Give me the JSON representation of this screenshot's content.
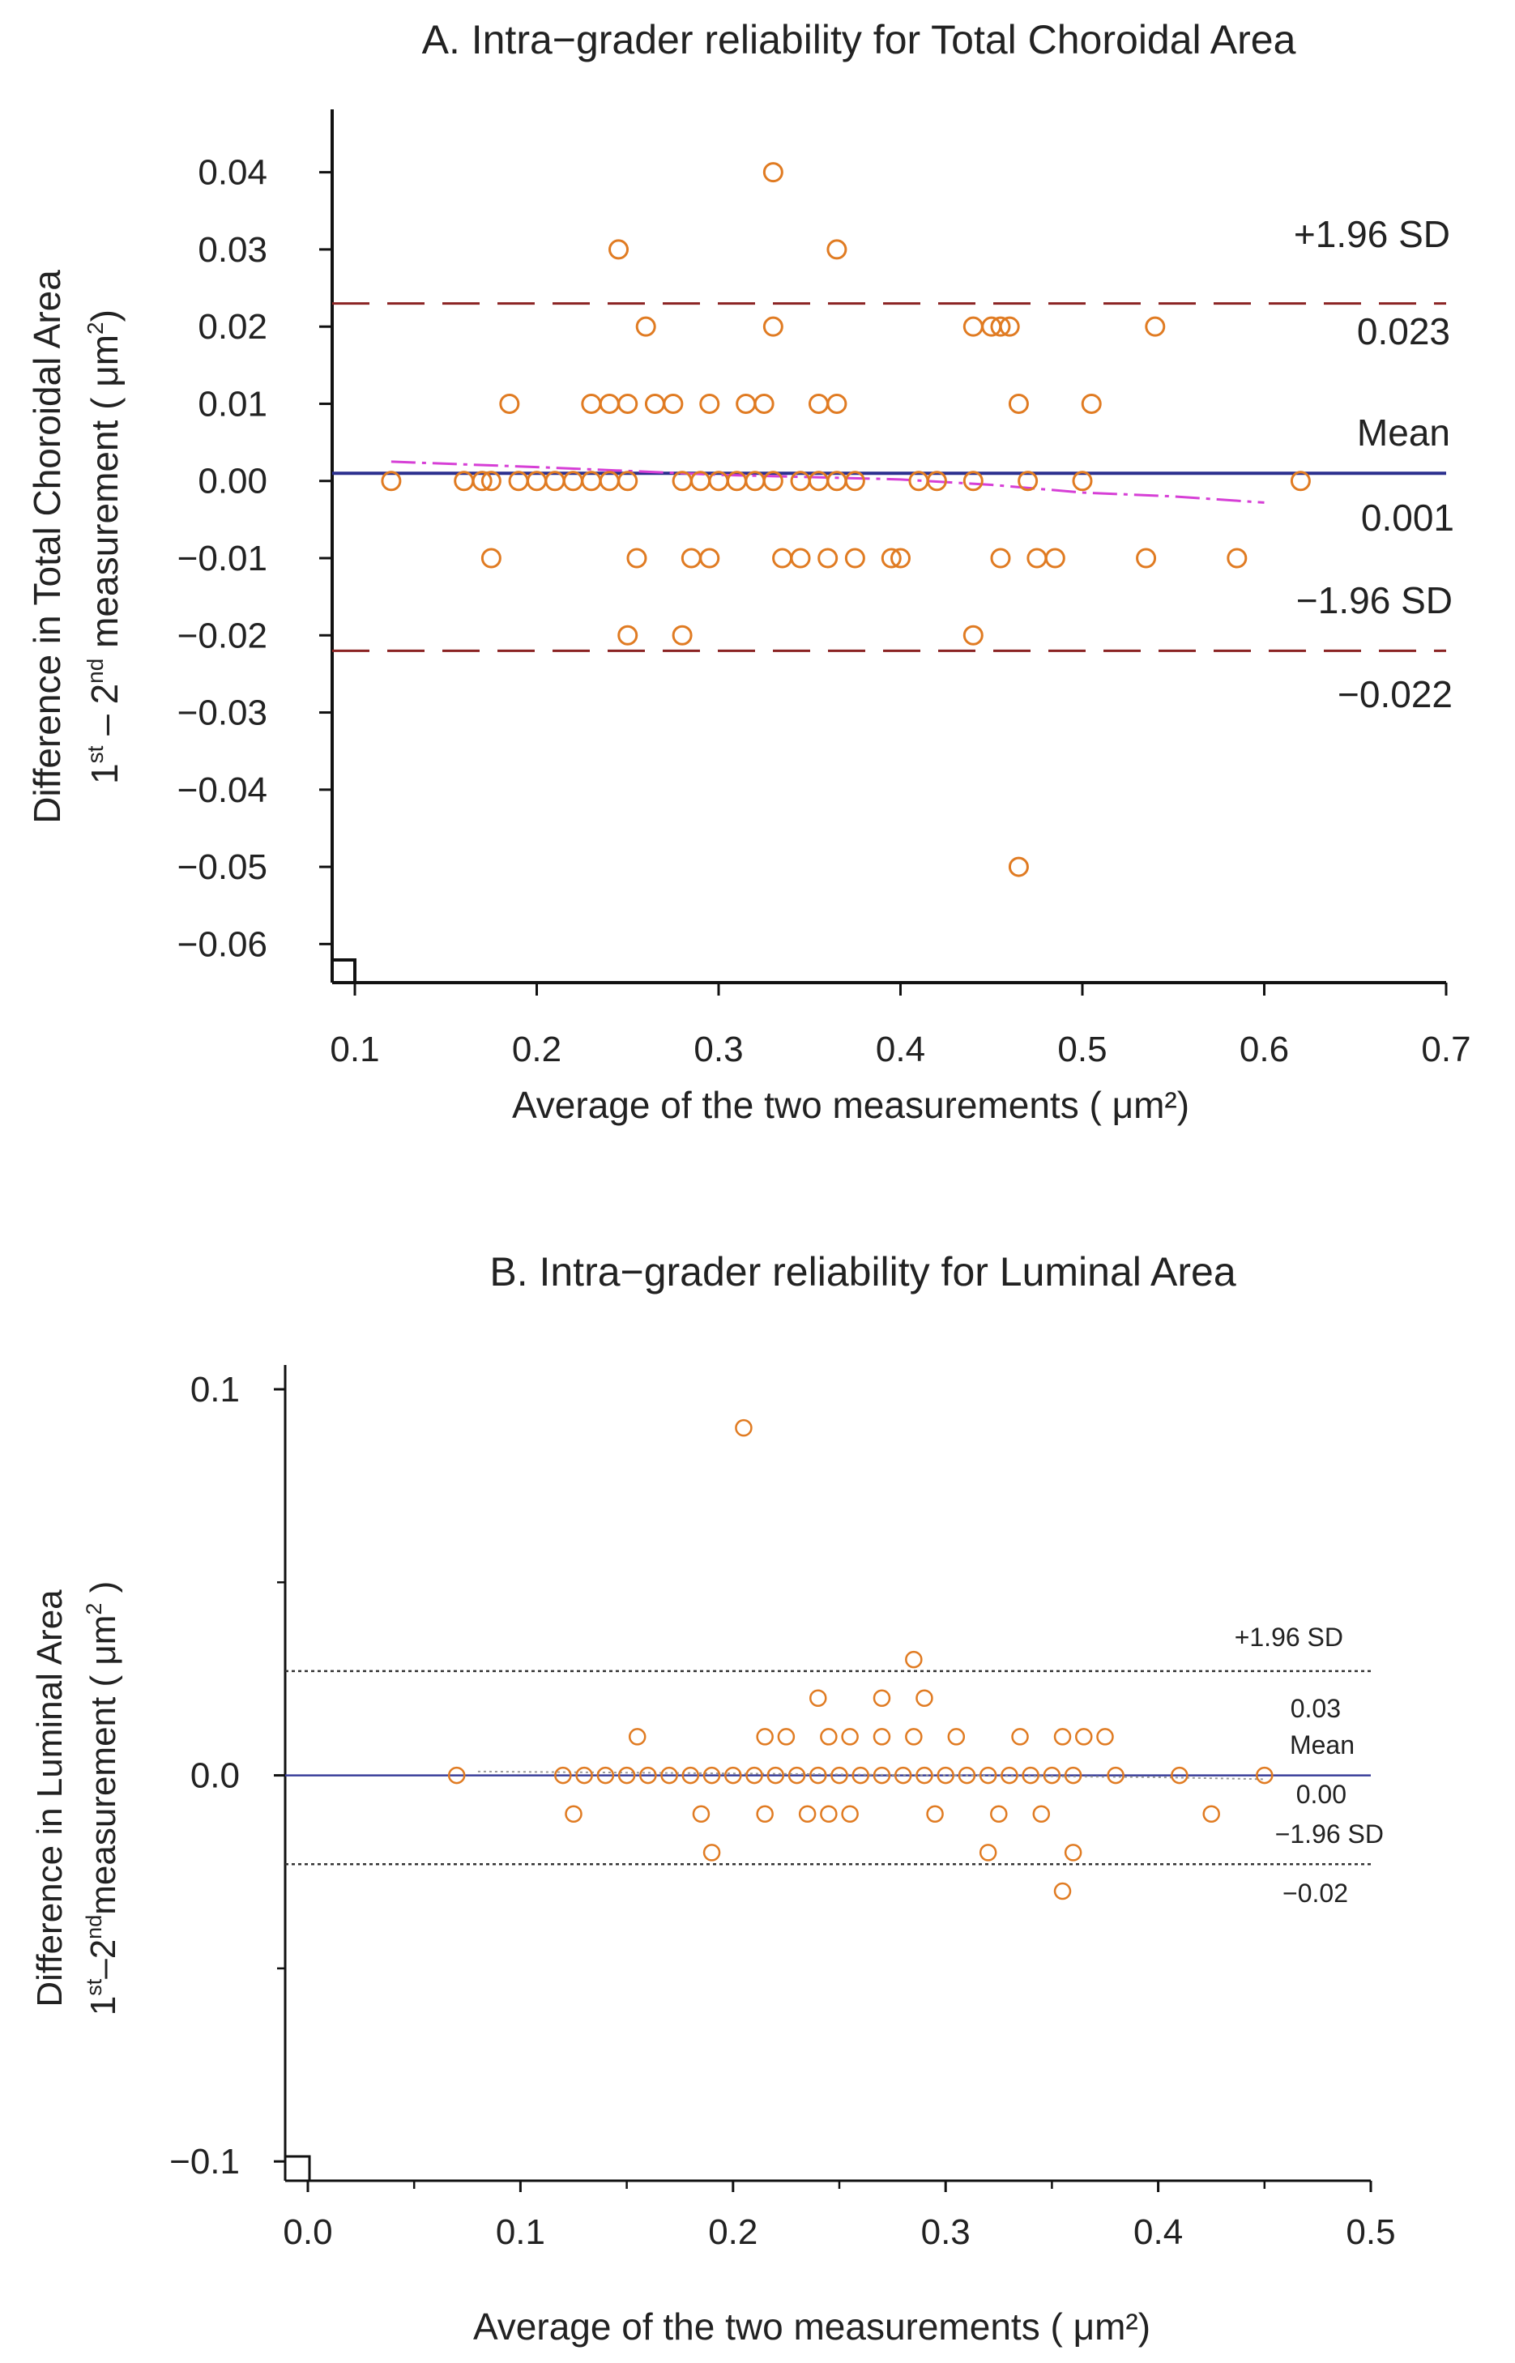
{
  "colors": {
    "background": "#ffffff",
    "axis": "#111111",
    "text": "#222222",
    "points": "#e07b22",
    "mean_line_a": "#2b2f8e",
    "mean_line_b": "#3a3f9a",
    "loa_line_a": "#8b2323",
    "loa_line_b": "#333333",
    "trend_line": "#d63fd6"
  },
  "chart_data": [
    {
      "type": "scatter",
      "title": "A. Intra−grader reliability for Total Choroidal Area",
      "xlabel": "Average of the two measurements ( μm²)",
      "ylabel_line1": "Difference in Total Choroidal Area",
      "ylabel_line2_a": "1",
      "ylabel_line2_sup1": "st",
      "ylabel_line2_b": " – 2",
      "ylabel_line2_sup2": "nd",
      "ylabel_line2_c": " measurement ( μm",
      "ylabel_line2_sup3": "2",
      "ylabel_line2_d": ")",
      "xlim": [
        0.1,
        0.7
      ],
      "ylim": [
        -0.065,
        0.045
      ],
      "xticks": [
        0.1,
        0.2,
        0.3,
        0.4,
        0.5,
        0.6,
        0.7
      ],
      "xtick_labels": [
        "0.1",
        "0.2",
        "0.3",
        "0.4",
        "0.5",
        "0.6",
        "0.7"
      ],
      "yticks": [
        0.04,
        0.03,
        0.02,
        0.01,
        0.0,
        -0.01,
        -0.02,
        -0.03,
        -0.04,
        -0.05,
        -0.06
      ],
      "ytick_labels": [
        "0.04",
        "0.03",
        "0.02",
        "0.01",
        "0.00",
        "−0.01",
        "−0.02",
        "−0.03",
        "−0.04",
        "−0.05",
        "−0.06"
      ],
      "mean": 0.001,
      "upper_loa": 0.023,
      "lower_loa": -0.022,
      "annotations": {
        "upper_label": "+1.96 SD",
        "upper_value": "0.023",
        "mean_label": "Mean",
        "mean_value": "0.001",
        "lower_label": "−1.96 SD",
        "lower_value": "−0.022"
      },
      "trend": {
        "x": [
          0.12,
          0.2,
          0.3,
          0.4,
          0.45,
          0.5,
          0.55,
          0.6
        ],
        "y": [
          0.0025,
          0.0018,
          0.0008,
          0.0002,
          -0.0005,
          -0.0015,
          -0.002,
          -0.0028
        ]
      },
      "points": {
        "x": [
          0.33,
          0.245,
          0.365,
          0.26,
          0.33,
          0.44,
          0.45,
          0.46,
          0.54,
          0.455,
          0.185,
          0.23,
          0.24,
          0.25,
          0.265,
          0.275,
          0.295,
          0.315,
          0.325,
          0.355,
          0.365,
          0.465,
          0.505,
          0.12,
          0.16,
          0.17,
          0.175,
          0.19,
          0.2,
          0.21,
          0.22,
          0.23,
          0.24,
          0.25,
          0.28,
          0.29,
          0.3,
          0.31,
          0.32,
          0.33,
          0.345,
          0.355,
          0.365,
          0.375,
          0.41,
          0.42,
          0.44,
          0.47,
          0.5,
          0.62,
          0.175,
          0.255,
          0.285,
          0.295,
          0.335,
          0.345,
          0.36,
          0.375,
          0.395,
          0.4,
          0.455,
          0.475,
          0.485,
          0.535,
          0.585,
          0.25,
          0.28,
          0.44,
          0.465
        ],
        "y": [
          0.04,
          0.03,
          0.03,
          0.02,
          0.02,
          0.02,
          0.02,
          0.02,
          0.02,
          0.02,
          0.01,
          0.01,
          0.01,
          0.01,
          0.01,
          0.01,
          0.01,
          0.01,
          0.01,
          0.01,
          0.01,
          0.01,
          0.01,
          0.0,
          0.0,
          0.0,
          0.0,
          0.0,
          0.0,
          0.0,
          0.0,
          0.0,
          0.0,
          0.0,
          0.0,
          0.0,
          0.0,
          0.0,
          0.0,
          0.0,
          0.0,
          0.0,
          0.0,
          0.0,
          0.0,
          0.0,
          0.0,
          0.0,
          0.0,
          0.0,
          -0.01,
          -0.01,
          -0.01,
          -0.01,
          -0.01,
          -0.01,
          -0.01,
          -0.01,
          -0.01,
          -0.01,
          -0.01,
          -0.01,
          -0.01,
          -0.01,
          -0.01,
          -0.02,
          -0.02,
          -0.02,
          -0.05
        ]
      }
    },
    {
      "type": "scatter",
      "title": "B. Intra−grader reliability for Luminal Area",
      "xlabel": "Average of the two measurements ( μm²)",
      "ylabel_line1": "Difference in Luminal Area",
      "ylabel_line2_a": "1",
      "ylabel_line2_sup1": "st",
      "ylabel_line2_b": "–2",
      "ylabel_line2_sup2": "nd",
      "ylabel_line2_c": "measurement ( μm",
      "ylabel_line2_sup3": "2",
      "ylabel_line2_d": " )",
      "xlim": [
        0.0,
        0.5
      ],
      "ylim": [
        -0.105,
        0.1
      ],
      "xticks": [
        0.0,
        0.1,
        0.2,
        0.3,
        0.4,
        0.5
      ],
      "xtick_labels": [
        "0.0",
        "0.1",
        "0.2",
        "0.3",
        "0.4",
        "0.5"
      ],
      "yticks": [
        0.1,
        0.0,
        -0.1
      ],
      "ytick_labels": [
        "0.1",
        "0.0",
        "−0.1"
      ],
      "minor_yticks": [
        0.05,
        -0.05
      ],
      "minor_xticks": [
        0.05,
        0.15,
        0.25,
        0.35,
        0.45
      ],
      "mean": 0.0,
      "upper_loa": 0.027,
      "lower_loa": -0.023,
      "annotations": {
        "upper_label": "+1.96 SD",
        "upper_value": "0.03",
        "mean_label": "Mean",
        "mean_value": "0.00",
        "lower_label": "−1.96 SD",
        "lower_value": "−0.02"
      },
      "trend": {
        "x": [
          0.08,
          0.2,
          0.3,
          0.4,
          0.45
        ],
        "y": [
          0.001,
          0.0005,
          0.0,
          -0.0005,
          -0.001
        ]
      },
      "points": {
        "x": [
          0.205,
          0.285,
          0.24,
          0.27,
          0.29,
          0.155,
          0.215,
          0.225,
          0.245,
          0.255,
          0.27,
          0.285,
          0.305,
          0.335,
          0.355,
          0.365,
          0.375,
          0.07,
          0.12,
          0.13,
          0.14,
          0.15,
          0.16,
          0.17,
          0.18,
          0.19,
          0.2,
          0.21,
          0.22,
          0.23,
          0.24,
          0.25,
          0.26,
          0.27,
          0.28,
          0.29,
          0.3,
          0.31,
          0.32,
          0.33,
          0.34,
          0.35,
          0.36,
          0.38,
          0.41,
          0.45,
          0.125,
          0.185,
          0.215,
          0.235,
          0.245,
          0.255,
          0.295,
          0.325,
          0.345,
          0.425,
          0.19,
          0.32,
          0.36,
          0.355
        ],
        "y": [
          0.09,
          0.03,
          0.02,
          0.02,
          0.02,
          0.01,
          0.01,
          0.01,
          0.01,
          0.01,
          0.01,
          0.01,
          0.01,
          0.01,
          0.01,
          0.01,
          0.01,
          0.0,
          0.0,
          0.0,
          0.0,
          0.0,
          0.0,
          0.0,
          0.0,
          0.0,
          0.0,
          0.0,
          0.0,
          0.0,
          0.0,
          0.0,
          0.0,
          0.0,
          0.0,
          0.0,
          0.0,
          0.0,
          0.0,
          0.0,
          0.0,
          0.0,
          0.0,
          0.0,
          0.0,
          0.0,
          -0.01,
          -0.01,
          -0.01,
          -0.01,
          -0.01,
          -0.01,
          -0.01,
          -0.01,
          -0.01,
          -0.01,
          -0.02,
          -0.02,
          -0.02,
          -0.03
        ]
      }
    }
  ]
}
